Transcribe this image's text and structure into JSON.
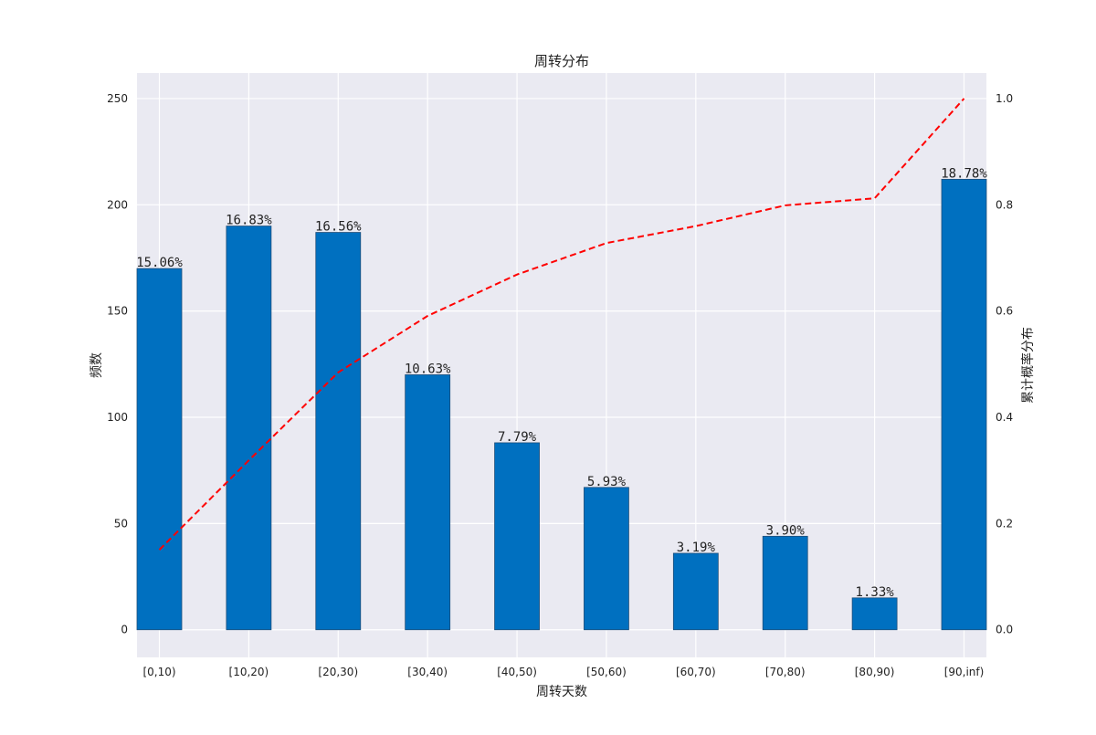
{
  "chart_data": {
    "type": "bar",
    "title": "周转分布",
    "xlabel": "周转天数",
    "ylabel": "频数",
    "y2label": "累计概率分布",
    "categories": [
      "[0,10)",
      "[10,20)",
      "[20,30)",
      "[30,40)",
      "[40,50)",
      "[50,60)",
      "[60,70)",
      "[70,80)",
      "[80,90)",
      "[90,inf)"
    ],
    "values": [
      170,
      190,
      187,
      120,
      88,
      67,
      36,
      44,
      15,
      212
    ],
    "value_labels": [
      "15.06%",
      "16.83%",
      "16.56%",
      "10.63%",
      "7.79%",
      "5.93%",
      "3.19%",
      "3.90%",
      "1.33%",
      "18.78%"
    ],
    "cumulative": {
      "type": "line",
      "style": "dashed",
      "values": [
        0.1506,
        0.3189,
        0.4845,
        0.5908,
        0.6687,
        0.728,
        0.7599,
        0.7989,
        0.8122,
        1.0
      ]
    },
    "ylim": [
      -13,
      262
    ],
    "yticks": [
      0,
      50,
      100,
      150,
      200,
      250
    ],
    "y2lim": [
      -0.052,
      1.048
    ],
    "y2ticks": [
      "0.0",
      "0.2",
      "0.4",
      "0.6",
      "0.8",
      "1.0"
    ],
    "grid": true,
    "colors": {
      "bar": "#0070C0",
      "bar_edge": "#1f4e79",
      "line": "#FF0000",
      "plot_background": "#EAEAF2",
      "grid": "#FFFFFF"
    }
  }
}
